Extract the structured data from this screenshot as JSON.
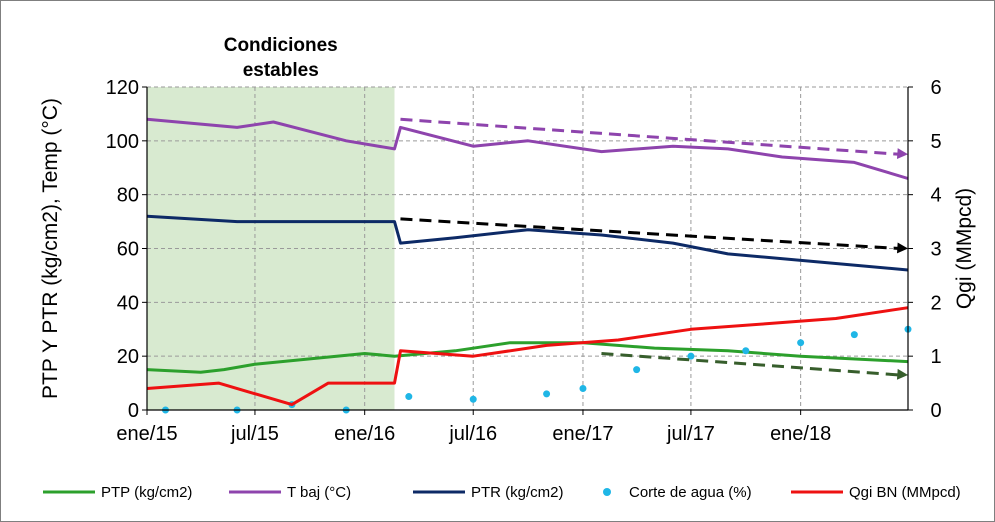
{
  "chart_data": {
    "type": "line",
    "annotation": {
      "line1": "Condiciones",
      "line2": "estables"
    },
    "x_tick_labels": [
      "ene/15",
      "jul/15",
      "ene/16",
      "jul/16",
      "ene/17",
      "jul/17",
      "ene/18"
    ],
    "x_ticks": [
      "2015-01-01",
      "2015-07-01",
      "2016-01-01",
      "2016-07-01",
      "2017-01-01",
      "2017-07-01",
      "2018-01-01"
    ],
    "x_range": [
      "2015-01-01",
      "2018-06-30"
    ],
    "stable_period": [
      "2015-01-01",
      "2016-02-20"
    ],
    "y_left": {
      "label": "PTP Y PTR (kg/cm2), Temp (°C)",
      "min": 0,
      "max": 120,
      "ticks": [
        0,
        20,
        40,
        60,
        80,
        100,
        120
      ]
    },
    "y_right": {
      "label": "Qgi (MMpcd)",
      "min": 0,
      "max": 6,
      "ticks": [
        0,
        1,
        2,
        3,
        4,
        5,
        6
      ]
    },
    "grid": true,
    "legend_position": "bottom",
    "series": [
      {
        "name": "PTP (kg/cm2)",
        "axis": "left",
        "color": "#2ca02c",
        "kind": "line",
        "points": [
          [
            "2015-01-01",
            15
          ],
          [
            "2015-04-01",
            14
          ],
          [
            "2015-05-10",
            15
          ],
          [
            "2015-07-01",
            17
          ],
          [
            "2015-10-01",
            19
          ],
          [
            "2016-01-01",
            21
          ],
          [
            "2016-02-20",
            20
          ],
          [
            "2016-06-01",
            22
          ],
          [
            "2016-09-01",
            25
          ],
          [
            "2017-01-01",
            25
          ],
          [
            "2017-05-01",
            23
          ],
          [
            "2017-09-01",
            22
          ],
          [
            "2018-01-01",
            20
          ],
          [
            "2018-06-30",
            18
          ]
        ]
      },
      {
        "name": "T baj (°C)",
        "axis": "left",
        "color": "#8e44ad",
        "kind": "line",
        "points": [
          [
            "2015-01-01",
            108
          ],
          [
            "2015-06-01",
            105
          ],
          [
            "2015-08-01",
            107
          ],
          [
            "2015-12-01",
            100
          ],
          [
            "2016-02-20",
            97
          ],
          [
            "2016-03-01",
            105
          ],
          [
            "2016-07-01",
            98
          ],
          [
            "2016-10-01",
            100
          ],
          [
            "2017-02-01",
            96
          ],
          [
            "2017-06-01",
            98
          ],
          [
            "2017-09-01",
            97
          ],
          [
            "2017-12-01",
            94
          ],
          [
            "2018-04-01",
            92
          ],
          [
            "2018-06-30",
            86
          ]
        ]
      },
      {
        "name": "PTR (kg/cm2)",
        "axis": "left",
        "color": "#0d2a66",
        "kind": "line",
        "points": [
          [
            "2015-01-01",
            72
          ],
          [
            "2015-06-01",
            70
          ],
          [
            "2016-02-20",
            70
          ],
          [
            "2016-03-01",
            62
          ],
          [
            "2016-06-01",
            64
          ],
          [
            "2016-10-01",
            67
          ],
          [
            "2017-02-01",
            65
          ],
          [
            "2017-06-01",
            62
          ],
          [
            "2017-09-01",
            58
          ],
          [
            "2018-02-01",
            55
          ],
          [
            "2018-06-30",
            52
          ]
        ]
      },
      {
        "name": "Corte de agua (%)",
        "axis": "left",
        "color": "#1fb6e6",
        "kind": "scatter",
        "points": [
          [
            "2015-02-01",
            0
          ],
          [
            "2015-06-01",
            0
          ],
          [
            "2015-09-01",
            2
          ],
          [
            "2015-12-01",
            0
          ],
          [
            "2016-03-15",
            5
          ],
          [
            "2016-07-01",
            4
          ],
          [
            "2016-11-01",
            6
          ],
          [
            "2017-01-01",
            8
          ],
          [
            "2017-04-01",
            15
          ],
          [
            "2017-07-01",
            20
          ],
          [
            "2017-10-01",
            22
          ],
          [
            "2018-01-01",
            25
          ],
          [
            "2018-04-01",
            28
          ],
          [
            "2018-06-30",
            30
          ]
        ]
      },
      {
        "name": "Qgi BN (MMpcd)",
        "axis": "right",
        "color": "#ee1111",
        "kind": "line",
        "points": [
          [
            "2015-01-01",
            0.4
          ],
          [
            "2015-05-01",
            0.5
          ],
          [
            "2015-09-01",
            0.1
          ],
          [
            "2015-11-01",
            0.5
          ],
          [
            "2016-02-20",
            0.5
          ],
          [
            "2016-03-01",
            1.1
          ],
          [
            "2016-07-01",
            1.0
          ],
          [
            "2016-11-01",
            1.2
          ],
          [
            "2017-03-01",
            1.3
          ],
          [
            "2017-07-01",
            1.5
          ],
          [
            "2017-11-01",
            1.6
          ],
          [
            "2018-03-01",
            1.7
          ],
          [
            "2018-06-30",
            1.9
          ]
        ]
      }
    ],
    "trend_lines": [
      {
        "color": "#8e44ad",
        "from": [
          "2016-03-01",
          108
        ],
        "to": [
          "2018-06-30",
          95
        ]
      },
      {
        "color": "#000000",
        "from": [
          "2016-03-01",
          71
        ],
        "to": [
          "2018-06-30",
          60
        ]
      },
      {
        "color": "#375e2c",
        "from": [
          "2017-02-01",
          21
        ],
        "to": [
          "2018-06-30",
          13
        ]
      }
    ]
  }
}
